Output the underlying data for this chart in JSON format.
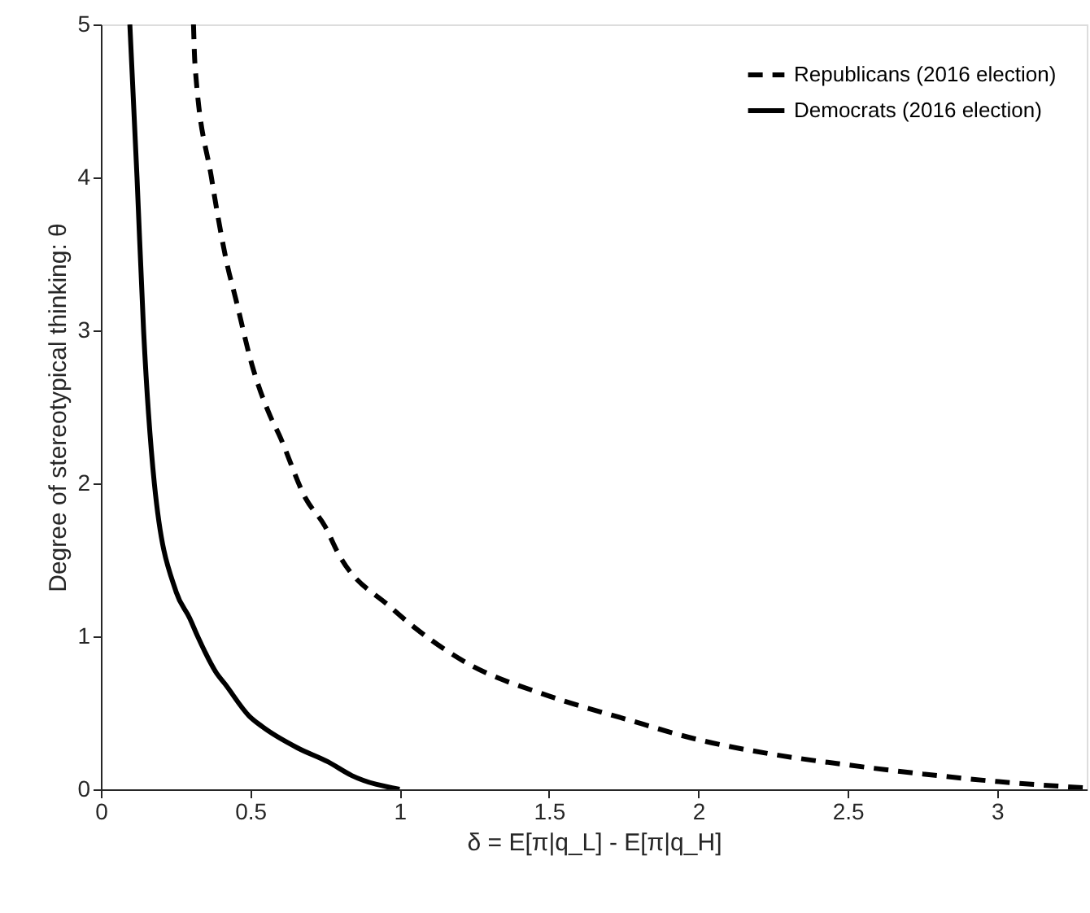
{
  "chart_data": {
    "type": "line",
    "xlabel": "δ = E[π|q_L] - E[π|q_H]",
    "ylabel": "Degree of stereotypical thinking: θ",
    "xlim": [
      0,
      3.3
    ],
    "xticks": [
      0,
      0.5,
      1,
      1.5,
      2,
      2.5,
      3
    ],
    "ylim": [
      0,
      5
    ],
    "yticks": [
      0,
      1,
      2,
      3,
      4,
      5
    ],
    "grid": false,
    "legend": "top right",
    "series": [
      {
        "name": "Republicans (2016 election)",
        "color": "#000000",
        "line_style": "dashed",
        "x": [
          0.31,
          0.315,
          0.37,
          0.424,
          0.451,
          0.505,
          0.569,
          0.596,
          0.686,
          0.75,
          0.795,
          0.97,
          1.221,
          1.5,
          1.755,
          2.009,
          2.245,
          2.498,
          2.752,
          3.005,
          3.29
        ],
        "values": [
          5.0,
          4.74,
          4.0,
          3.42,
          3.21,
          2.78,
          2.43,
          2.32,
          1.9,
          1.72,
          1.54,
          1.19,
          0.83,
          0.61,
          0.46,
          0.32,
          0.23,
          0.16,
          0.1,
          0.05,
          0.01
        ]
      },
      {
        "name": "Democrats (2016 election)",
        "color": "#000000",
        "line_style": "solid",
        "x": [
          0.097,
          0.121,
          0.143,
          0.179,
          0.252,
          0.297,
          0.324,
          0.387,
          0.415,
          0.496,
          0.54,
          0.659,
          0.76,
          0.84,
          1.0
        ],
        "values": [
          5.0,
          4.0,
          3.0,
          2.0,
          1.29,
          1.12,
          1.0,
          0.76,
          0.69,
          0.48,
          0.41,
          0.27,
          0.18,
          0.09,
          0.0
        ]
      }
    ]
  }
}
